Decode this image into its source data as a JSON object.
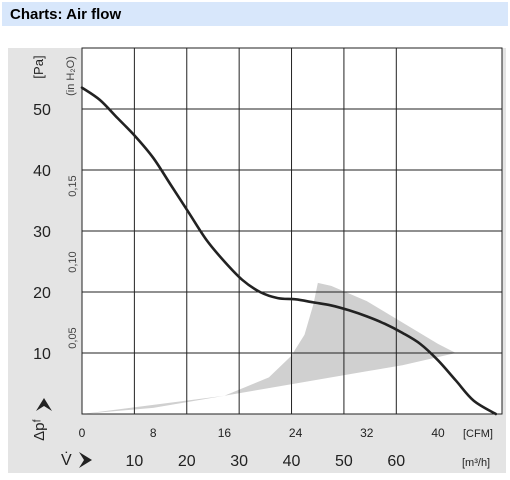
{
  "header": {
    "title": "Charts: Air flow"
  },
  "chart_data": {
    "type": "line",
    "y_unit_label": "[Pa]",
    "y_unit_label_alt": "(in H₂O)",
    "y_axis_symbol": "Δpᶠ",
    "x_axis_symbol": "V̇",
    "x_unit_cfm": "[CFM]",
    "x_unit_m3h": "[m³/h]",
    "ylim": [
      0,
      53.5
    ],
    "xlim_cfm": [
      0,
      41
    ],
    "y_ticks_pa": [
      10,
      20,
      30,
      40,
      50
    ],
    "y_ticks_inh2o": [
      0.05,
      0.1,
      0.15
    ],
    "y_tick_labels_inh2o": [
      "0,05",
      "0,10",
      "0,15"
    ],
    "x_ticks_cfm": [
      0,
      8,
      16,
      24,
      32,
      40
    ],
    "x_ticks_m3h": [
      10,
      20,
      30,
      40,
      50,
      60
    ],
    "grid": true,
    "series": [
      {
        "x": [
          0,
          2,
          4,
          6,
          8,
          10,
          12,
          14,
          16,
          18,
          20,
          22,
          24,
          26,
          28,
          30,
          32,
          34,
          36,
          38,
          40,
          42,
          44,
          46.5
        ],
        "y": [
          53.5,
          51.5,
          48.5,
          45.5,
          42,
          37.5,
          33,
          28.5,
          25,
          22,
          20,
          19,
          18.8,
          18.3,
          17.8,
          17,
          16,
          14.8,
          13.3,
          11.5,
          8.8,
          5.5,
          2.2,
          0
        ]
      }
    ],
    "shaded_band": {
      "upper": {
        "x": [
          0,
          8,
          16,
          21,
          23.5,
          25,
          26,
          26.5,
          28,
          32,
          36,
          40,
          42
        ],
        "y": [
          0,
          1,
          3,
          6,
          9.5,
          13,
          18,
          21.5,
          21,
          18.5,
          15,
          11.5,
          10
        ]
      },
      "lower": {
        "x": [
          42,
          36,
          32,
          28,
          24,
          20,
          16,
          8,
          0
        ],
        "y": [
          10,
          8,
          7,
          6,
          5,
          4,
          3,
          1.5,
          0
        ]
      }
    }
  }
}
